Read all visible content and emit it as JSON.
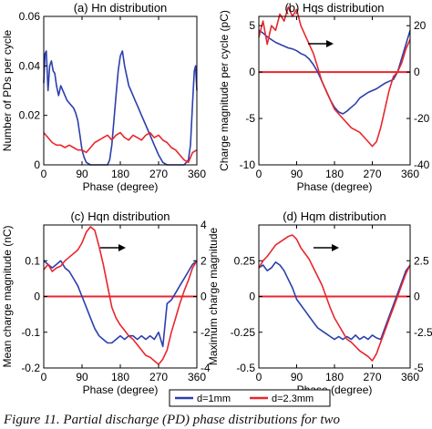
{
  "caption": "Figure 11. Partial discharge (PD) phase distributions for two",
  "legend": [
    {
      "label": "d=1mm",
      "color": "#2b3fae"
    },
    {
      "label": "d=2.3mm",
      "color": "#e8262d"
    }
  ],
  "chart_data": [
    {
      "type": "line",
      "title": "(a) Hn distribution",
      "xlabel": "Phase (degree)",
      "ylabel": "Number of PDs per cycle",
      "xlim": [
        0,
        360
      ],
      "xticks": [
        0,
        90,
        180,
        270,
        360
      ],
      "ylim": [
        0,
        0.06
      ],
      "yticks": [
        0,
        0.02,
        0.04,
        0.06
      ],
      "ytick_labels": [
        "0",
        "0.02",
        "0.04",
        "0.06"
      ],
      "grid": false,
      "series": [
        {
          "name": "d=1mm",
          "axis": "left",
          "color": "#2b3fae",
          "x": [
            0,
            3,
            6,
            10,
            14,
            18,
            22,
            26,
            30,
            35,
            40,
            45,
            50,
            55,
            60,
            65,
            70,
            75,
            80,
            85,
            90,
            95,
            100,
            110,
            120,
            130,
            140,
            150,
            155,
            160,
            165,
            170,
            175,
            180,
            185,
            190,
            195,
            200,
            205,
            210,
            215,
            220,
            225,
            230,
            240,
            250,
            260,
            270,
            280,
            290,
            300,
            310,
            320,
            330,
            340,
            345,
            350,
            354,
            357,
            360
          ],
          "y": [
            0.033,
            0.045,
            0.046,
            0.03,
            0.04,
            0.042,
            0.038,
            0.037,
            0.032,
            0.028,
            0.032,
            0.03,
            0.028,
            0.026,
            0.025,
            0.024,
            0.023,
            0.021,
            0.018,
            0.012,
            0.006,
            0.003,
            0.001,
            0.0,
            0.0,
            0.0,
            0.0,
            0.0,
            0.002,
            0.008,
            0.018,
            0.028,
            0.038,
            0.044,
            0.046,
            0.04,
            0.036,
            0.032,
            0.03,
            0.028,
            0.026,
            0.024,
            0.022,
            0.02,
            0.016,
            0.012,
            0.008,
            0.004,
            0.001,
            0.0,
            0.0,
            0.0,
            0.0,
            0.0,
            0.002,
            0.008,
            0.025,
            0.038,
            0.04,
            0.03
          ]
        },
        {
          "name": "d=2.3mm",
          "axis": "left",
          "color": "#e8262d",
          "x": [
            0,
            10,
            20,
            30,
            40,
            50,
            60,
            70,
            80,
            90,
            100,
            110,
            120,
            130,
            140,
            150,
            160,
            170,
            180,
            190,
            200,
            210,
            220,
            230,
            240,
            250,
            260,
            270,
            280,
            290,
            300,
            310,
            320,
            330,
            340,
            350,
            360
          ],
          "y": [
            0.013,
            0.011,
            0.009,
            0.008,
            0.008,
            0.007,
            0.008,
            0.007,
            0.006,
            0.006,
            0.005,
            0.007,
            0.009,
            0.01,
            0.011,
            0.012,
            0.01,
            0.012,
            0.013,
            0.011,
            0.01,
            0.012,
            0.011,
            0.01,
            0.012,
            0.013,
            0.011,
            0.012,
            0.01,
            0.009,
            0.007,
            0.006,
            0.004,
            0.002,
            0.001,
            0.005,
            0.006
          ]
        }
      ]
    },
    {
      "type": "line",
      "title": "(b) Hqs distribution",
      "xlabel": "Phase (degree)",
      "ylabel": "Charge magnitude per cycle (pC)",
      "xlim": [
        0,
        360
      ],
      "xticks": [
        0,
        90,
        180,
        270,
        360
      ],
      "ylim": [
        -10,
        6
      ],
      "yticks": [
        -10,
        -5,
        0,
        5
      ],
      "ytick_labels": [
        "-10",
        "-5",
        "0",
        "5"
      ],
      "y2lim": [
        -40,
        24
      ],
      "y2ticks": [
        -40,
        -20,
        0,
        20
      ],
      "y2tick_labels": [
        "-40",
        "-20",
        "0",
        "20"
      ],
      "grid": false,
      "series": [
        {
          "name": "d=1mm",
          "axis": "left",
          "color": "#2b3fae",
          "x": [
            0,
            10,
            20,
            30,
            40,
            50,
            60,
            70,
            80,
            90,
            100,
            110,
            120,
            130,
            140,
            150,
            160,
            170,
            180,
            190,
            200,
            210,
            220,
            230,
            240,
            250,
            260,
            270,
            280,
            290,
            300,
            310,
            320,
            330,
            340,
            350,
            360
          ],
          "y": [
            4.5,
            4.2,
            3.8,
            3.5,
            3.2,
            3.0,
            2.8,
            2.6,
            2.5,
            2.3,
            2.0,
            1.8,
            1.4,
            0.8,
            0.0,
            -1.0,
            -2.0,
            -3.0,
            -3.8,
            -4.3,
            -4.5,
            -4.2,
            -3.8,
            -3.4,
            -2.8,
            -2.5,
            -2.2,
            -2.0,
            -1.8,
            -1.5,
            -1.2,
            -1.0,
            -0.8,
            0.0,
            1.5,
            3.0,
            4.5
          ]
        },
        {
          "name": "d=2.3mm",
          "axis": "right",
          "color": "#e8262d",
          "x": [
            0,
            10,
            20,
            30,
            40,
            50,
            60,
            70,
            80,
            90,
            100,
            110,
            120,
            130,
            140,
            150,
            160,
            170,
            180,
            190,
            200,
            210,
            220,
            230,
            240,
            250,
            260,
            270,
            280,
            290,
            300,
            310,
            320,
            330,
            340,
            350,
            360
          ],
          "y": [
            15,
            22,
            12,
            20,
            18,
            25,
            22,
            28,
            24,
            27,
            20,
            16,
            12,
            8,
            2,
            -4,
            -8,
            -12,
            -16,
            -18,
            -20,
            -22,
            -24,
            -25,
            -26,
            -28,
            -30,
            -32,
            -30,
            -24,
            -16,
            -8,
            -2,
            0,
            4,
            10,
            14
          ]
        }
      ]
    },
    {
      "type": "line",
      "title": "(c) Hqn distribution",
      "xlabel": "Phase (degree)",
      "ylabel": "Mean charge magnitude (nC)",
      "y2label": "Maximum charge magnitude",
      "xlim": [
        0,
        360
      ],
      "xticks": [
        0,
        90,
        180,
        270,
        360
      ],
      "ylim": [
        -0.2,
        0.2
      ],
      "yticks": [
        -0.2,
        -0.1,
        0,
        0.1
      ],
      "ytick_labels": [
        "-0.2",
        "-0.1",
        "0",
        "0.1"
      ],
      "y2lim": [
        -4,
        4
      ],
      "y2ticks": [
        -4,
        -2,
        0,
        2,
        4
      ],
      "y2tick_labels": [
        "-4",
        "-2",
        "0",
        "2",
        "4"
      ],
      "grid": false,
      "series": [
        {
          "name": "d=1mm",
          "axis": "left",
          "color": "#2b3fae",
          "x": [
            0,
            10,
            20,
            30,
            40,
            50,
            60,
            70,
            80,
            90,
            100,
            110,
            120,
            130,
            140,
            150,
            160,
            170,
            180,
            190,
            200,
            210,
            220,
            230,
            240,
            250,
            260,
            270,
            280,
            290,
            300,
            310,
            320,
            330,
            340,
            350,
            360
          ],
          "y": [
            0.1,
            0.09,
            0.08,
            0.09,
            0.1,
            0.08,
            0.07,
            0.05,
            0.03,
            0.0,
            -0.03,
            -0.06,
            -0.09,
            -0.11,
            -0.12,
            -0.13,
            -0.13,
            -0.12,
            -0.11,
            -0.12,
            -0.11,
            -0.11,
            -0.12,
            -0.11,
            -0.12,
            -0.11,
            -0.12,
            -0.1,
            -0.14,
            -0.02,
            -0.01,
            0.01,
            0.03,
            0.05,
            0.07,
            0.09,
            0.1
          ]
        },
        {
          "name": "d=2.3mm",
          "axis": "right",
          "color": "#e8262d",
          "x": [
            0,
            10,
            20,
            30,
            40,
            50,
            60,
            70,
            80,
            90,
            100,
            110,
            120,
            130,
            140,
            150,
            160,
            170,
            180,
            190,
            200,
            210,
            220,
            230,
            240,
            250,
            260,
            270,
            280,
            290,
            300,
            310,
            320,
            330,
            340,
            350,
            360
          ],
          "y": [
            1.5,
            1.8,
            1.4,
            1.6,
            1.7,
            2.0,
            2.2,
            2.4,
            2.6,
            3.0,
            3.6,
            3.9,
            3.7,
            2.8,
            1.8,
            0.6,
            -0.6,
            -1.2,
            -1.6,
            -1.9,
            -2.2,
            -2.4,
            -2.7,
            -3.0,
            -3.3,
            -3.4,
            -3.6,
            -3.8,
            -3.5,
            -3.0,
            -2.0,
            -1.2,
            -0.4,
            0.3,
            0.9,
            1.6,
            2.0
          ]
        }
      ]
    },
    {
      "type": "line",
      "title": "(d) Hqm distribution",
      "xlabel": "Phase (degree)",
      "ylabel": "",
      "xlim": [
        0,
        360
      ],
      "xticks": [
        0,
        90,
        180,
        270,
        360
      ],
      "ylim": [
        -0.5,
        0.5
      ],
      "yticks": [
        -0.5,
        -0.25,
        0,
        0.25
      ],
      "ytick_labels": [
        "-0.5",
        "-0.25",
        "0",
        "0.25"
      ],
      "y2lim": [
        -5,
        5
      ],
      "y2ticks": [
        -5,
        -2.5,
        0,
        2.5
      ],
      "y2tick_labels": [
        "-5",
        "-2.5",
        "0",
        "2.5"
      ],
      "grid": false,
      "series": [
        {
          "name": "d=1mm",
          "axis": "left",
          "color": "#2b3fae",
          "x": [
            0,
            10,
            20,
            30,
            40,
            50,
            60,
            70,
            80,
            90,
            100,
            110,
            120,
            130,
            140,
            150,
            160,
            170,
            180,
            190,
            200,
            210,
            220,
            230,
            240,
            250,
            260,
            270,
            280,
            290,
            300,
            310,
            320,
            330,
            340,
            350,
            360
          ],
          "y": [
            0.2,
            0.22,
            0.18,
            0.2,
            0.24,
            0.22,
            0.18,
            0.12,
            0.06,
            -0.02,
            -0.06,
            -0.1,
            -0.14,
            -0.18,
            -0.22,
            -0.24,
            -0.26,
            -0.28,
            -0.3,
            -0.28,
            -0.3,
            -0.28,
            -0.3,
            -0.27,
            -0.3,
            -0.28,
            -0.3,
            -0.27,
            -0.29,
            -0.3,
            -0.22,
            -0.14,
            -0.06,
            0.02,
            0.1,
            0.18,
            0.22
          ]
        },
        {
          "name": "d=2.3mm",
          "axis": "right",
          "color": "#e8262d",
          "x": [
            0,
            10,
            20,
            30,
            40,
            50,
            60,
            70,
            80,
            90,
            100,
            110,
            120,
            130,
            140,
            150,
            160,
            170,
            180,
            190,
            200,
            210,
            220,
            230,
            240,
            250,
            260,
            270,
            280,
            290,
            300,
            310,
            320,
            330,
            340,
            350,
            360
          ],
          "y": [
            2.0,
            2.5,
            2.8,
            3.2,
            3.6,
            3.8,
            4.0,
            4.2,
            4.3,
            4.0,
            3.4,
            3.0,
            2.6,
            2.0,
            1.4,
            0.8,
            0.0,
            -0.8,
            -1.5,
            -2.0,
            -2.5,
            -3.0,
            -3.2,
            -3.5,
            -3.8,
            -4.0,
            -4.2,
            -4.5,
            -4.0,
            -3.2,
            -2.4,
            -1.6,
            -0.8,
            0.0,
            0.8,
            1.6,
            2.2
          ]
        }
      ]
    }
  ]
}
